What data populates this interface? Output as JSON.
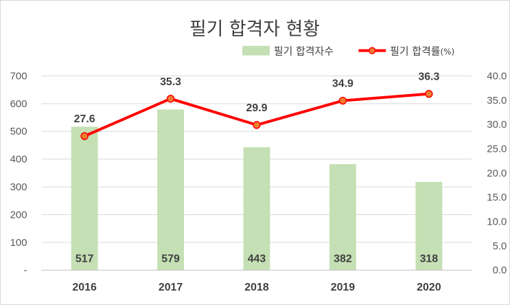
{
  "chart_data": {
    "type": "bar+line",
    "title": "필기 합격자 현황",
    "categories": [
      "2016",
      "2017",
      "2018",
      "2019",
      "2020"
    ],
    "series": [
      {
        "name": "필기 합격자수",
        "type": "bar",
        "axis": "left",
        "values": [
          517,
          579,
          443,
          382,
          318
        ],
        "value_labels": [
          "517",
          "579",
          "443",
          "382",
          "318"
        ],
        "color": "#c5e0b4"
      },
      {
        "name": "필기 합격률",
        "name_suffix": "(%)",
        "type": "line",
        "axis": "right",
        "values": [
          27.6,
          35.3,
          29.9,
          34.9,
          36.3
        ],
        "value_labels": [
          "27.6",
          "35.3",
          "29.9",
          "34.9",
          "36.3"
        ],
        "color": "#ff0000",
        "marker_fill": "#ed7d31"
      }
    ],
    "y_left": {
      "lim": [
        0,
        700
      ],
      "ticks": [
        0,
        100,
        200,
        300,
        400,
        500,
        600,
        700
      ],
      "tick_labels": [
        "-",
        "100",
        "200",
        "300",
        "400",
        "500",
        "600",
        "700"
      ]
    },
    "y_right": {
      "lim": [
        0,
        40
      ],
      "ticks": [
        0,
        5,
        10,
        15,
        20,
        25,
        30,
        35,
        40
      ],
      "tick_labels": [
        "0.0",
        "5.0",
        "10.0",
        "15.0",
        "20.0",
        "25.0",
        "30.0",
        "35.0",
        "40.0"
      ]
    },
    "grid": true,
    "grid_color": "#d9d9d9",
    "legend_position": "top-right"
  }
}
